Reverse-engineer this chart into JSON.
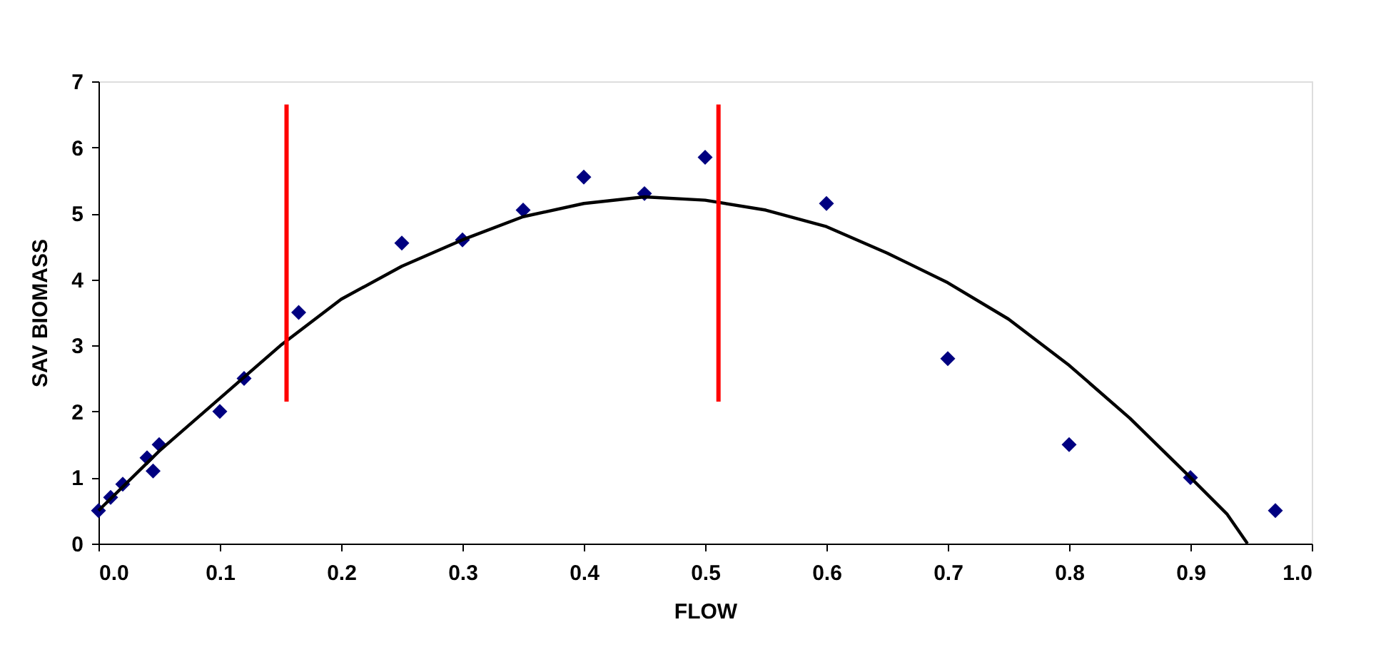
{
  "chart_data": {
    "type": "scatter",
    "xlabel": "FLOW",
    "ylabel": "SAV BIOMASS",
    "marker": "diamond",
    "xlim": [
      0,
      1
    ],
    "ylim": [
      0,
      7
    ],
    "xticks": [
      {
        "value": 0,
        "label": "0.0"
      },
      0.1,
      0.2,
      0.3,
      0.4,
      0.5,
      0.6,
      0.7,
      0.8,
      0.9,
      {
        "value": 1,
        "label": "1.0"
      }
    ],
    "yticks": [
      0,
      1,
      2,
      3,
      4,
      5,
      6,
      7
    ],
    "series": [
      {
        "color": "#000080",
        "x": [
          0,
          0.01,
          0.02,
          0.04,
          0.045,
          0.05,
          0.1,
          0.12,
          0.165,
          0.25,
          0.3,
          0.35,
          0.4,
          0.45,
          0.5,
          0.6,
          0.7,
          0.8,
          0.9,
          0.97
        ],
        "values": [
          0.5,
          0.7,
          0.9,
          1.3,
          1.1,
          1.5,
          2.0,
          2.5,
          3.5,
          4.55,
          4.6,
          5.05,
          5.55,
          5.3,
          5.85,
          5.15,
          2.8,
          1.5,
          1.0,
          0.5
        ]
      },
      {
        "type": "line",
        "marker": "none",
        "color": "#000000",
        "x": [
          0,
          0.05,
          0.1,
          0.15,
          0.2,
          0.25,
          0.3,
          0.35,
          0.4,
          0.45,
          0.5,
          0.55,
          0.6,
          0.65,
          0.7,
          0.75,
          0.8,
          0.85,
          0.9,
          0.93,
          0.947
        ],
        "values": [
          0.5,
          1.4,
          2.2,
          3.0,
          3.7,
          4.2,
          4.6,
          4.95,
          5.15,
          5.25,
          5.2,
          5.05,
          4.8,
          4.4,
          3.95,
          3.4,
          2.7,
          1.9,
          1.0,
          0.45,
          0
        ]
      },
      {
        "type": "line",
        "marker": "none",
        "color": "#ff0000",
        "x": [
          0.155,
          0.155
        ],
        "values": [
          2.15,
          6.65
        ]
      },
      {
        "type": "line",
        "marker": "none",
        "color": "#ff0000",
        "x": [
          0.511,
          0.511
        ],
        "values": [
          2.15,
          6.65
        ]
      }
    ]
  }
}
